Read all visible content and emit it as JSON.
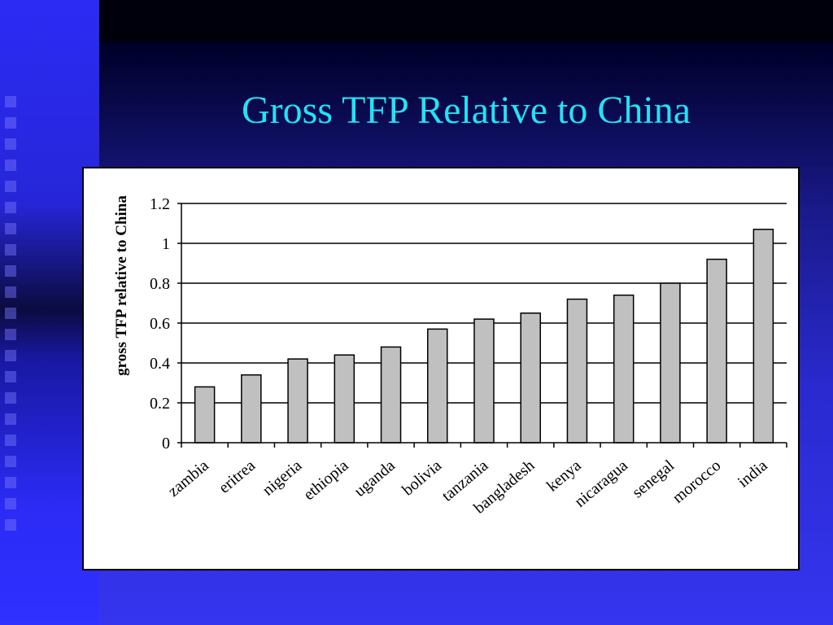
{
  "slide": {
    "title": "Gross TFP Relative to China"
  },
  "chart_data": {
    "type": "bar",
    "title": "",
    "xlabel": "",
    "ylabel": "gross TFP relative to China",
    "ylim": [
      0,
      1.2
    ],
    "yticks": [
      "0",
      "0.2",
      "0.4",
      "0.6",
      "0.8",
      "1",
      "1.2"
    ],
    "grid": true,
    "categories": [
      "zambia",
      "eritrea",
      "nigeria",
      "ethiopia",
      "uganda",
      "bolivia",
      "tanzania",
      "bangladesh",
      "kenya",
      "nicaragua",
      "senegal",
      "morocco",
      "india"
    ],
    "values": [
      0.28,
      0.34,
      0.42,
      0.44,
      0.48,
      0.57,
      0.62,
      0.65,
      0.72,
      0.74,
      0.8,
      0.92,
      1.07
    ],
    "bar_color": "#c0c0c0"
  }
}
